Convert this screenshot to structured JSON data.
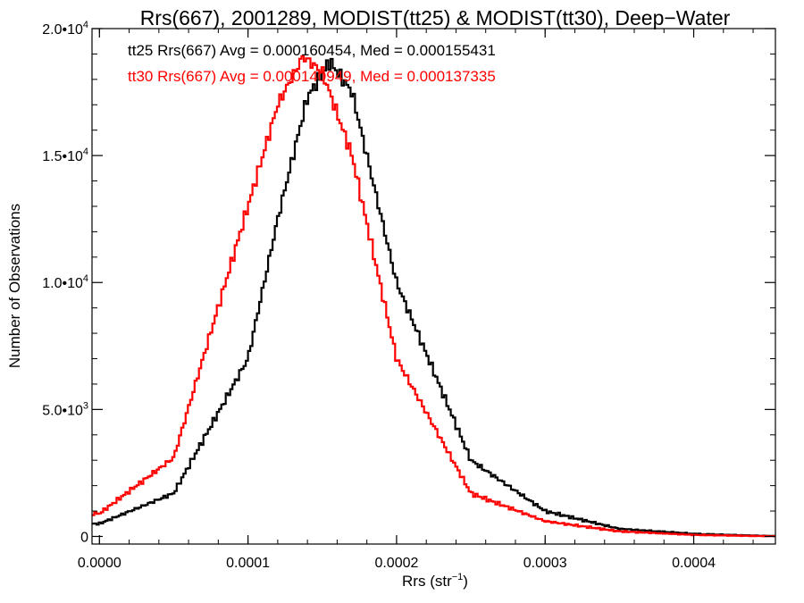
{
  "chart_data": {
    "type": "line",
    "title": "Rrs(667), 2001289, MODIST(tt25) & MODIST(tt30), Deep−Water",
    "xlabel": "Rrs (str",
    "xlabel_sup": "−1",
    "xlabel_close": ")",
    "ylabel": "Number of Observations",
    "xlim": [
      -5e-06,
      0.000455
    ],
    "ylim": [
      -300,
      20000
    ],
    "x_ticks": [
      {
        "value": 0.0,
        "label": "0.0000"
      },
      {
        "value": 0.0001,
        "label": "0.0001"
      },
      {
        "value": 0.0002,
        "label": "0.0002"
      },
      {
        "value": 0.0003,
        "label": "0.0003"
      },
      {
        "value": 0.0004,
        "label": "0.0004"
      }
    ],
    "y_ticks": [
      {
        "value": 0,
        "mantissa": "0",
        "exp": ""
      },
      {
        "value": 5000,
        "mantissa": "5.0•10",
        "exp": "3"
      },
      {
        "value": 10000,
        "mantissa": "1.0•10",
        "exp": "4"
      },
      {
        "value": 15000,
        "mantissa": "1.5•10",
        "exp": "4"
      },
      {
        "value": 20000,
        "mantissa": "2.0•10",
        "exp": "4"
      }
    ],
    "grid": false,
    "legend_position": "top-left inside plot",
    "series": [
      {
        "name": "tt25",
        "color": "#000000",
        "label": "tt25 Rrs(667) Avg = 0.000160454, Med = 0.000155431",
        "mean": 0.000155,
        "sigma_left": 4.7e-05,
        "sigma_right": 5.5e-05,
        "x": [
          0.0,
          5e-05,
          0.0001,
          0.00012,
          0.00014,
          0.000155,
          0.00017,
          0.0002,
          0.00025,
          0.0003,
          0.00035,
          0.0004,
          0.00045
        ],
        "values": [
          500,
          1700,
          7000,
          12500,
          17300,
          18700,
          17500,
          10000,
          3000,
          1000,
          300,
          100,
          20
        ]
      },
      {
        "name": "tt30",
        "color": "#ff0000",
        "label": "tt30 Rrs(667) Avg = 0.000140949, Med = 0.000137335",
        "mean": 0.000137,
        "sigma_left": 4.5e-05,
        "sigma_right": 5e-05,
        "x": [
          0.0,
          5e-05,
          0.0001,
          0.00012,
          0.000137,
          0.00015,
          0.00017,
          0.0002,
          0.00025,
          0.0003,
          0.00035,
          0.0004,
          0.00045
        ],
        "values": [
          900,
          3100,
          13000,
          17000,
          18900,
          18300,
          15000,
          7000,
          1700,
          600,
          200,
          60,
          10
        ]
      }
    ]
  }
}
